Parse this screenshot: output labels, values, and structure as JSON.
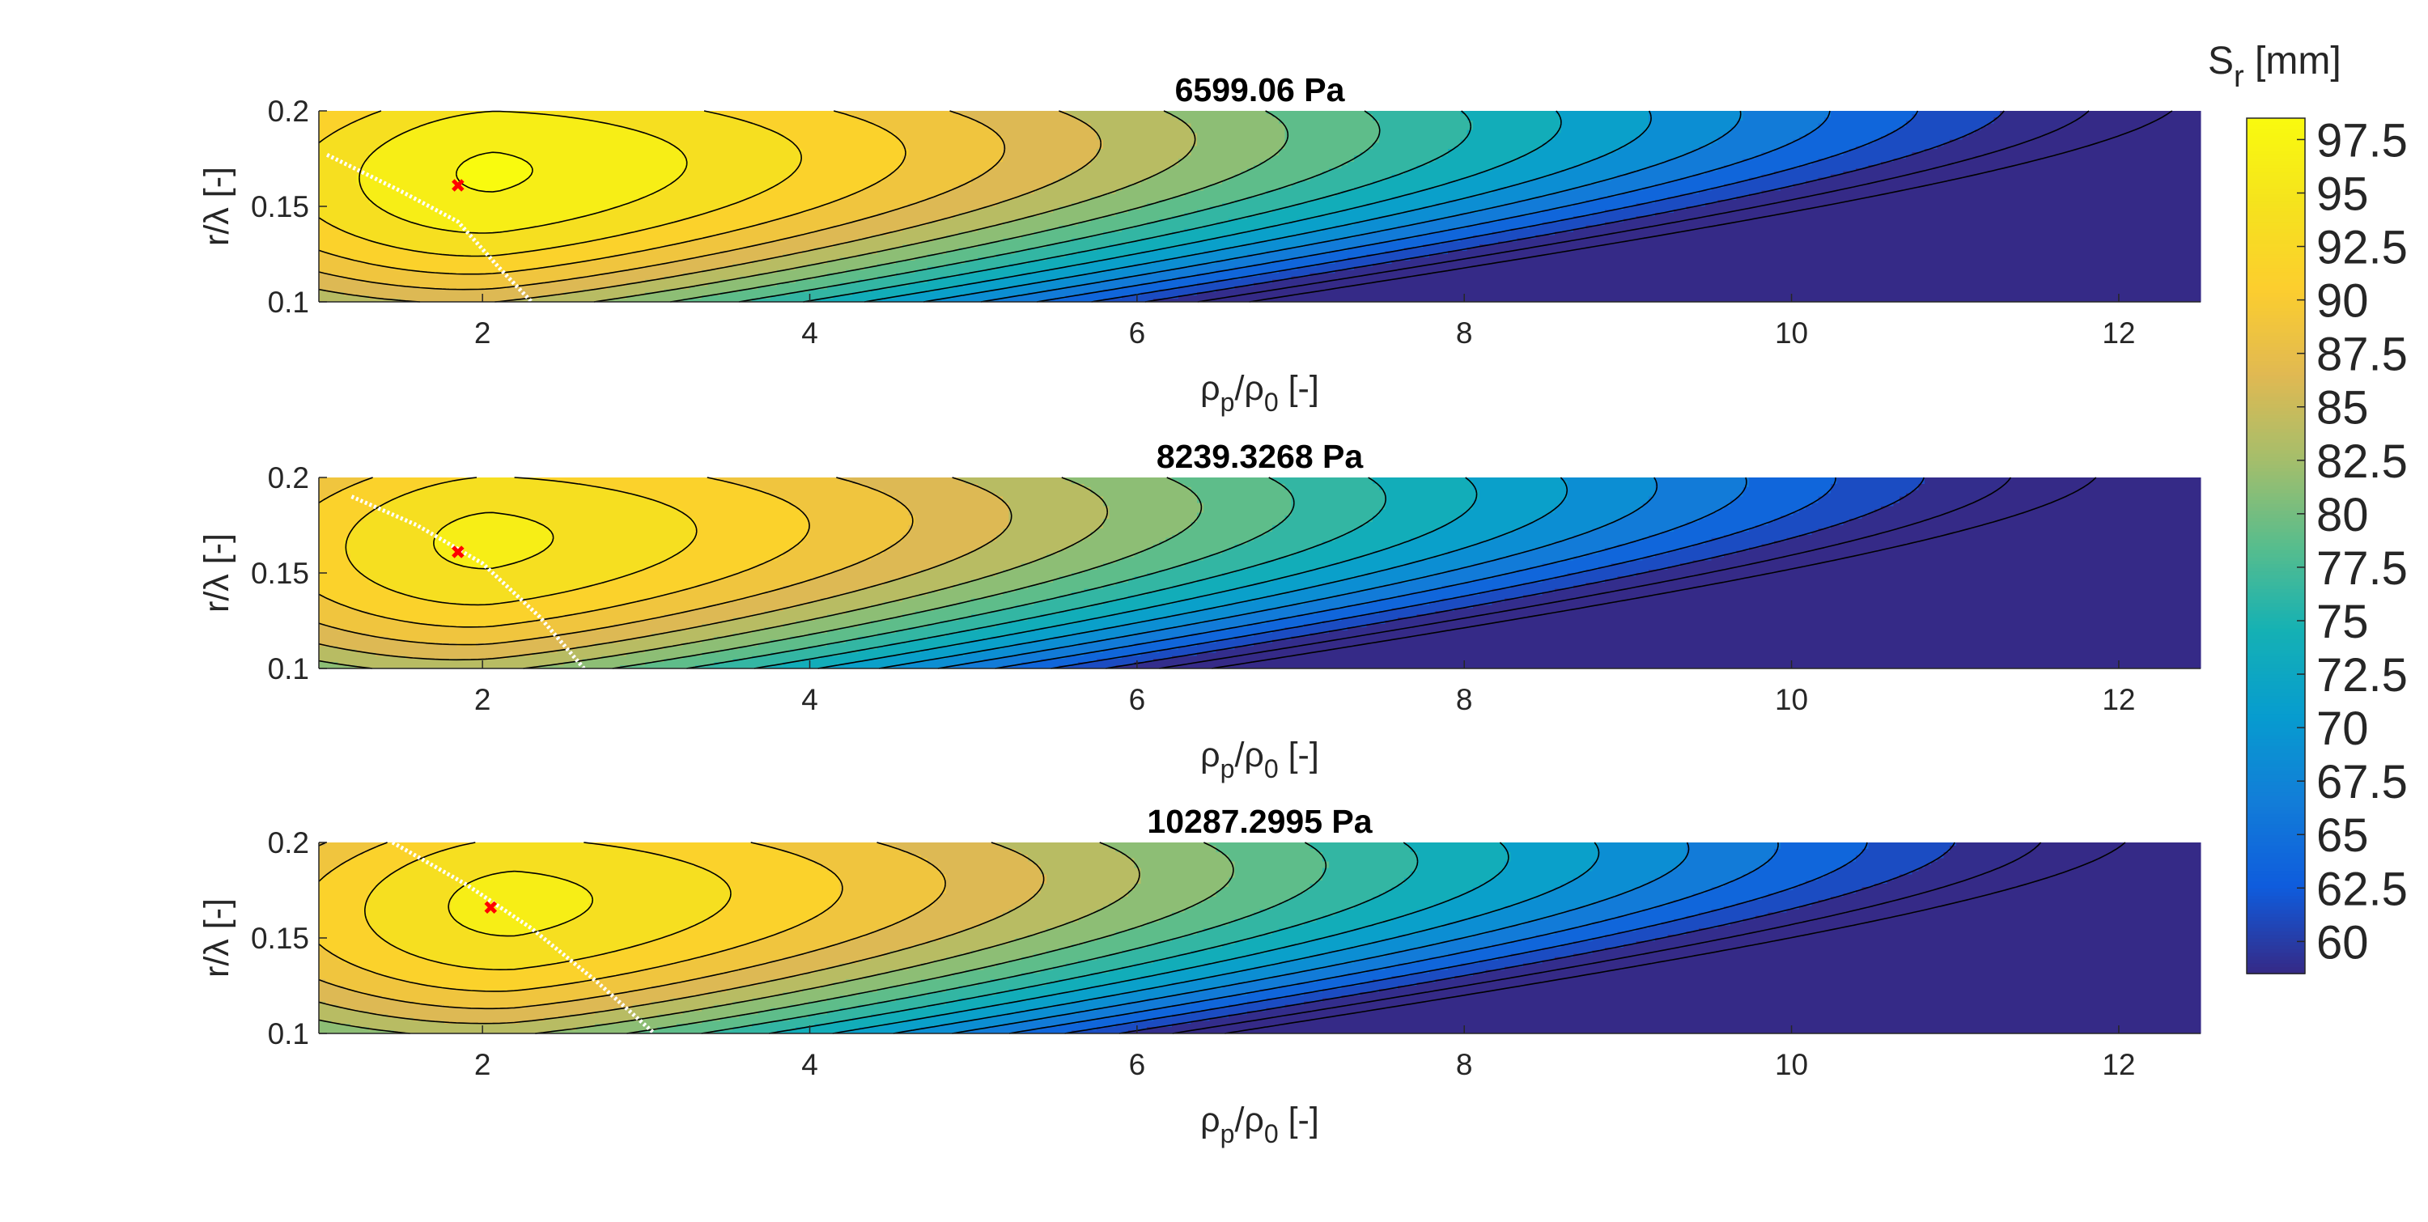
{
  "chart_data": {
    "type": "contour",
    "panels": [
      {
        "title": "6599.06 Pa",
        "xlabel_main": "ρ",
        "xlabel_sub1": "p",
        "xlabel_sep": "/ρ",
        "xlabel_sub2": "0",
        "xlabel_unit": " [-]",
        "ylabel": "r/λ [-]",
        "xlim": [
          1,
          12.5
        ],
        "ylim": [
          0.1,
          0.2
        ],
        "xticks": [
          "2",
          "4",
          "6",
          "8",
          "10",
          "12"
        ],
        "yticks": [
          "0.1",
          "0.15",
          "0.2"
        ],
        "peak": {
          "x": 2.08,
          "y": 0.168,
          "value": 97.8
        },
        "optimum_marker": {
          "x": 1.85,
          "y": 0.161
        },
        "optimum_line": [
          [
            1.05,
            0.177
          ],
          [
            1.5,
            0.158
          ],
          [
            1.85,
            0.142
          ],
          [
            2.1,
            0.118
          ],
          [
            2.3,
            0.1
          ]
        ],
        "levels_max": 97.5
      },
      {
        "title": "8239.3268 Pa",
        "xlabel_main": "ρ",
        "xlabel_sub1": "p",
        "xlabel_sep": "/ρ",
        "xlabel_sub2": "0",
        "xlabel_unit": " [-]",
        "ylabel": "r/λ [-]",
        "xlim": [
          1,
          12.5
        ],
        "ylim": [
          0.1,
          0.2
        ],
        "xticks": [
          "2",
          "4",
          "6",
          "8",
          "10",
          "12"
        ],
        "yticks": [
          "0.1",
          "0.15",
          "0.2"
        ],
        "peak": {
          "x": 2.05,
          "y": 0.167,
          "value": 95.6
        },
        "optimum_marker": {
          "x": 1.85,
          "y": 0.161
        },
        "optimum_line": [
          [
            1.2,
            0.19
          ],
          [
            1.6,
            0.175
          ],
          [
            2.0,
            0.155
          ],
          [
            2.35,
            0.127
          ],
          [
            2.62,
            0.1
          ]
        ],
        "levels_max": 95
      },
      {
        "title": "10287.2995 Pa",
        "xlabel_main": "ρ",
        "xlabel_sub1": "p",
        "xlabel_sep": "/ρ",
        "xlabel_sub2": "0",
        "xlabel_unit": " [-]",
        "ylabel": "r/λ [-]",
        "xlim": [
          1,
          12.5
        ],
        "ylim": [
          0.1,
          0.2
        ],
        "xticks": [
          "2",
          "4",
          "6",
          "8",
          "10",
          "12"
        ],
        "yticks": [
          "0.1",
          "0.15",
          "0.2"
        ],
        "peak": {
          "x": 2.2,
          "y": 0.168,
          "value": 95.8
        },
        "optimum_marker": {
          "x": 2.05,
          "y": 0.166
        },
        "optimum_line": [
          [
            1.45,
            0.2
          ],
          [
            1.9,
            0.178
          ],
          [
            2.3,
            0.155
          ],
          [
            2.7,
            0.127
          ],
          [
            3.05,
            0.1
          ]
        ],
        "levels_max": 95
      }
    ],
    "colorbar": {
      "title_main": "S",
      "title_sub": "r",
      "title_unit": " [mm]",
      "range": [
        58.5,
        98.5
      ],
      "ticks": [
        {
          "value": 97.5,
          "label": "97.5"
        },
        {
          "value": 95,
          "label": "95"
        },
        {
          "value": 92.5,
          "label": "92.5"
        },
        {
          "value": 90,
          "label": "90"
        },
        {
          "value": 87.5,
          "label": "87.5"
        },
        {
          "value": 85,
          "label": "85"
        },
        {
          "value": 82.5,
          "label": "82.5"
        },
        {
          "value": 80,
          "label": "80"
        },
        {
          "value": 77.5,
          "label": "77.5"
        },
        {
          "value": 75,
          "label": "75"
        },
        {
          "value": 72.5,
          "label": "72.5"
        },
        {
          "value": 70,
          "label": "70"
        },
        {
          "value": 67.5,
          "label": "67.5"
        },
        {
          "value": 65,
          "label": "65"
        },
        {
          "value": 62.5,
          "label": "62.5"
        },
        {
          "value": 60,
          "label": "60"
        }
      ],
      "colormap": "parula"
    },
    "contour_step": 2.5,
    "contour_line_color": "#000000",
    "optimum_line_color": "#ffffff",
    "marker_color": "#ff0000"
  }
}
